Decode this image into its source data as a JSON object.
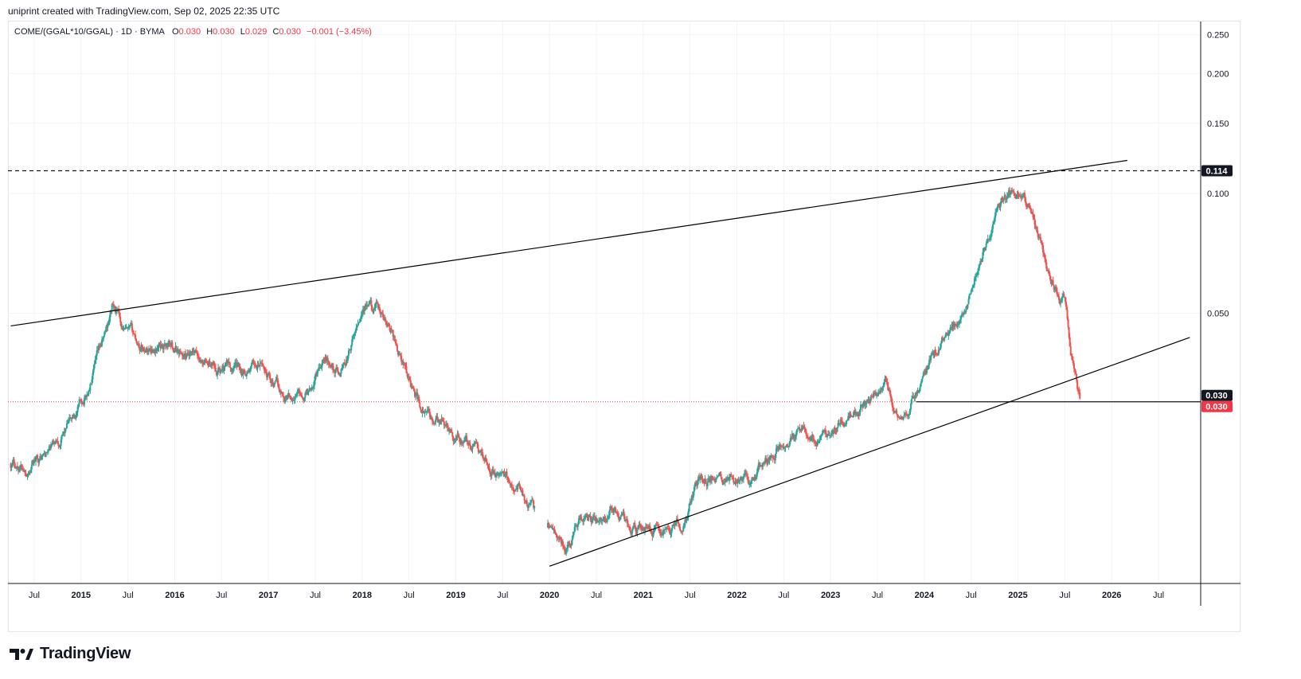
{
  "header": {
    "text": "uniprint created with TradingView.com, Sep 02, 2025 22:35 UTC"
  },
  "legend": {
    "symbol": "COME/(GGAL*10/GGAL) · 1D · BYMA",
    "o_label": "O",
    "o_value": "0.030",
    "h_label": "H",
    "h_value": "0.030",
    "l_label": "L",
    "l_value": "0.029",
    "c_label": "C",
    "c_value": "0.030",
    "change": "−0.001 (−3.45%)"
  },
  "brand": {
    "name": "TradingView"
  },
  "colors": {
    "up": "#26a69a",
    "down": "#ef5350",
    "grid": "#f0f3fa",
    "line": "#000000",
    "last_price": "#f23645"
  },
  "chart_data": {
    "type": "candlestick",
    "y_scale": "log",
    "ylim": [
      0.0105,
      0.27
    ],
    "y_ticks": [
      "0.250",
      "0.200",
      "0.150",
      "0.100",
      "0.050"
    ],
    "x_ticks": [
      "Jul",
      "2015",
      "Jul",
      "2016",
      "Jul",
      "2017",
      "Jul",
      "2018",
      "Jul",
      "2019",
      "Jul",
      "2020",
      "Jul",
      "2021",
      "Jul",
      "2022",
      "Jul",
      "2023",
      "Jul",
      "2024",
      "Jul",
      "2025",
      "Jul",
      "2026",
      "Jul"
    ],
    "price_path": [
      [
        "2014-04",
        0.021
      ],
      [
        "2014-06",
        0.0205
      ],
      [
        "2014-09",
        0.0225
      ],
      [
        "2014-12",
        0.027
      ],
      [
        "2015-02",
        0.032
      ],
      [
        "2015-04",
        0.043
      ],
      [
        "2015-05",
        0.052
      ],
      [
        "2015-07",
        0.044
      ],
      [
        "2015-09",
        0.041
      ],
      [
        "2015-12",
        0.042
      ],
      [
        "2016-03",
        0.038
      ],
      [
        "2016-06",
        0.037
      ],
      [
        "2016-09",
        0.036
      ],
      [
        "2016-12",
        0.037
      ],
      [
        "2017-03",
        0.031
      ],
      [
        "2017-06",
        0.032
      ],
      [
        "2017-08",
        0.04
      ],
      [
        "2017-10",
        0.035
      ],
      [
        "2017-12",
        0.043
      ],
      [
        "2018-01",
        0.052
      ],
      [
        "2018-03",
        0.05
      ],
      [
        "2018-05",
        0.043
      ],
      [
        "2018-07",
        0.034
      ],
      [
        "2018-09",
        0.028
      ],
      [
        "2018-12",
        0.025
      ],
      [
        "2019-03",
        0.023
      ],
      [
        "2019-05",
        0.021
      ],
      [
        "2019-07",
        0.019
      ],
      [
        "2019-09",
        0.019
      ],
      [
        "2019-11",
        0.016
      ],
      [
        "2020-01",
        0.0145
      ],
      [
        "2020-03",
        0.0128
      ],
      [
        "2020-05",
        0.0155
      ],
      [
        "2020-07",
        0.0145
      ],
      [
        "2020-09",
        0.0162
      ],
      [
        "2020-12",
        0.0147
      ],
      [
        "2021-03",
        0.0142
      ],
      [
        "2021-06",
        0.0148
      ],
      [
        "2021-08",
        0.019
      ],
      [
        "2021-11",
        0.019
      ],
      [
        "2022-03",
        0.019
      ],
      [
        "2022-06",
        0.023
      ],
      [
        "2022-09",
        0.025
      ],
      [
        "2022-12",
        0.024
      ],
      [
        "2023-03",
        0.027
      ],
      [
        "2023-06",
        0.03
      ],
      [
        "2023-08",
        0.033
      ],
      [
        "2023-10",
        0.026
      ],
      [
        "2023-12",
        0.031
      ],
      [
        "2024-03",
        0.042
      ],
      [
        "2024-06",
        0.05
      ],
      [
        "2024-09",
        0.075
      ],
      [
        "2024-11",
        0.096
      ],
      [
        "2025-01",
        0.1
      ],
      [
        "2025-03",
        0.09
      ],
      [
        "2025-05",
        0.062
      ],
      [
        "2025-07",
        0.055
      ],
      [
        "2025-08",
        0.038
      ],
      [
        "2025-09",
        0.03
      ]
    ],
    "data_gap": [
      "2019-11",
      "2020-01"
    ],
    "last_price": 0.03,
    "resistance_level": 0.114,
    "price_labels": [
      "0.114",
      "0.030",
      "0.030"
    ],
    "trendlines": [
      {
        "name": "upper-trendline",
        "points": [
          [
            "2014-04",
            0.0465
          ],
          [
            "2026-03",
            0.121
          ]
        ]
      },
      {
        "name": "lower-trendline",
        "points": [
          [
            "2020-01",
            0.0116
          ],
          [
            "2026-11",
            0.0435
          ]
        ]
      }
    ],
    "support_line": {
      "from": "2023-12",
      "to": "2025-09",
      "value": 0.03
    }
  }
}
